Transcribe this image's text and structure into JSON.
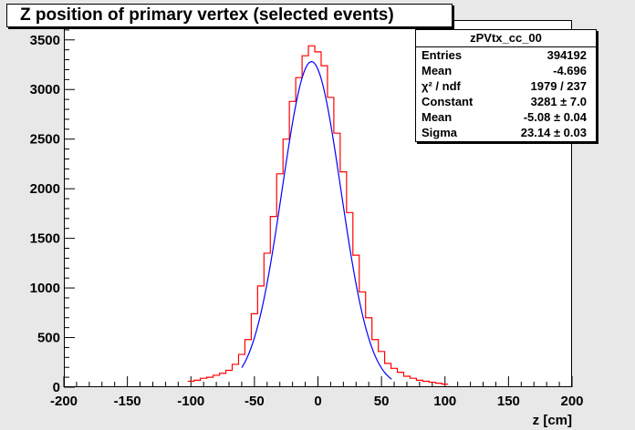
{
  "chart_data": {
    "type": "histogram",
    "title": "Z position of primary vertex (selected events)",
    "xlabel": "z [cm]",
    "ylabel": "",
    "xlim": [
      -200,
      200
    ],
    "ylim": [
      0,
      3700
    ],
    "grid": false,
    "x_ticks": [
      "-200",
      "-150",
      "-100",
      "-50",
      "0",
      "50",
      "100",
      "150",
      "200"
    ],
    "y_ticks": [
      "0",
      "500",
      "1000",
      "1500",
      "2000",
      "2500",
      "3000",
      "3500"
    ],
    "histogram": {
      "name": "zPVtx_cc_00",
      "color": "#ff0000",
      "bins": [
        {
          "x": -100,
          "y": 60
        },
        {
          "x": -95,
          "y": 70
        },
        {
          "x": -90,
          "y": 90
        },
        {
          "x": -85,
          "y": 100
        },
        {
          "x": -80,
          "y": 120
        },
        {
          "x": -75,
          "y": 140
        },
        {
          "x": -70,
          "y": 170
        },
        {
          "x": -65,
          "y": 230
        },
        {
          "x": -60,
          "y": 330
        },
        {
          "x": -55,
          "y": 480
        },
        {
          "x": -50,
          "y": 740
        },
        {
          "x": -45,
          "y": 1020
        },
        {
          "x": -40,
          "y": 1350
        },
        {
          "x": -35,
          "y": 1720
        },
        {
          "x": -30,
          "y": 2150
        },
        {
          "x": -25,
          "y": 2500
        },
        {
          "x": -20,
          "y": 2880
        },
        {
          "x": -15,
          "y": 3120
        },
        {
          "x": -10,
          "y": 3340
        },
        {
          "x": -5,
          "y": 3440
        },
        {
          "x": 0,
          "y": 3380
        },
        {
          "x": 5,
          "y": 3240
        },
        {
          "x": 10,
          "y": 2920
        },
        {
          "x": 15,
          "y": 2560
        },
        {
          "x": 20,
          "y": 2170
        },
        {
          "x": 25,
          "y": 1760
        },
        {
          "x": 30,
          "y": 1330
        },
        {
          "x": 35,
          "y": 960
        },
        {
          "x": 40,
          "y": 700
        },
        {
          "x": 45,
          "y": 480
        },
        {
          "x": 50,
          "y": 360
        },
        {
          "x": 55,
          "y": 240
        },
        {
          "x": 60,
          "y": 190
        },
        {
          "x": 65,
          "y": 150
        },
        {
          "x": 70,
          "y": 110
        },
        {
          "x": 75,
          "y": 90
        },
        {
          "x": 80,
          "y": 70
        },
        {
          "x": 85,
          "y": 60
        },
        {
          "x": 90,
          "y": 50
        },
        {
          "x": 95,
          "y": 40
        },
        {
          "x": 100,
          "y": 30
        }
      ]
    },
    "fit": {
      "type": "gaussian",
      "color": "#0000ff",
      "constant": 3281,
      "mean": -5.08,
      "sigma": 23.14,
      "range": [
        -60,
        58
      ]
    },
    "stats_box": {
      "title": "zPVtx_cc_00",
      "placement": "top-right",
      "rows": [
        {
          "label": "Entries",
          "value": "394192"
        },
        {
          "label": "Mean",
          "value": "-4.696"
        },
        {
          "label": "χ² / ndf",
          "value": "1979 / 237"
        },
        {
          "label": "Constant",
          "value": "3281 ± 7.0"
        },
        {
          "label": "Mean",
          "value": "-5.08 ± 0.04"
        },
        {
          "label": "Sigma",
          "value": "23.14 ± 0.03"
        }
      ]
    }
  }
}
